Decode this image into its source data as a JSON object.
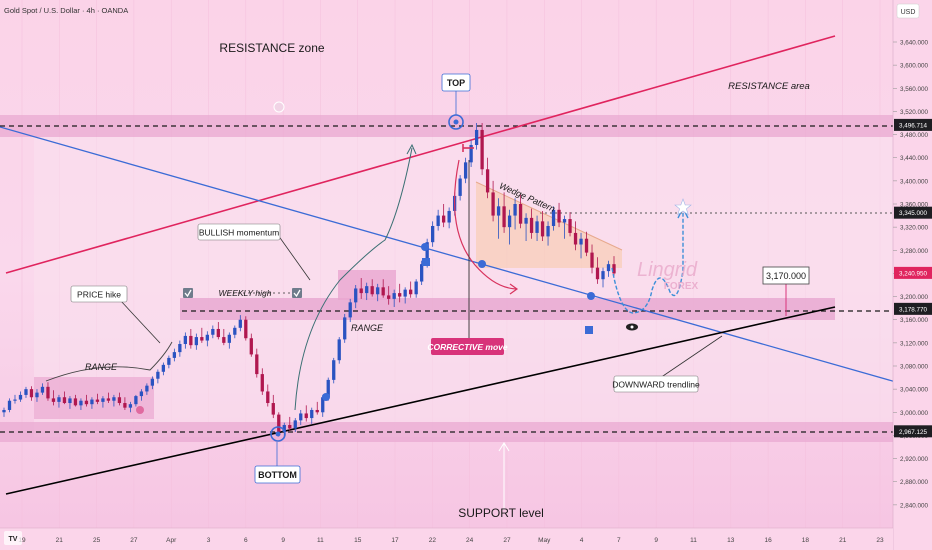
{
  "header": {
    "symbol_title": "Gold Spot / U.S. Dollar · 4h · OANDA",
    "currency": "USD"
  },
  "colors": {
    "background": "#fbd5ea",
    "bull_candle": "#2a53c1",
    "bear_candle": "#b0174f",
    "resistance_line": "#e0245e",
    "downtrend_line": "#3b6bd6",
    "support_line": "#000000",
    "pink_label": "#d8337a",
    "forecast_path": "#3d8fd8"
  },
  "chart_data": {
    "type": "candlestick",
    "title": "",
    "price_axis": {
      "unit": "USD",
      "range": [
        2800,
        3680
      ],
      "ticks": [
        2800,
        2840,
        2880,
        2920,
        2960,
        3000,
        3040,
        3080,
        3120,
        3160,
        3200,
        3240,
        3280,
        3320,
        3360,
        3400,
        3440,
        3480,
        3520,
        3560,
        3600,
        3640
      ]
    },
    "time_axis": {
      "labels": [
        "19",
        "21",
        "25",
        "27",
        "Apr",
        "3",
        "6",
        "9",
        "11",
        "15",
        "17",
        "22",
        "24",
        "27",
        "May",
        "4",
        "7",
        "9",
        "11",
        "13",
        "16",
        "18",
        "21",
        "23"
      ]
    },
    "price_badges": [
      {
        "label": "3,496.714",
        "value": 3496.714,
        "style": "dark"
      },
      {
        "label": "3,345.000",
        "value": 3345.0,
        "style": "dark"
      },
      {
        "label": "3,240.950",
        "value": 3240.95,
        "style": "current"
      },
      {
        "label": "3,178.770",
        "value": 3178.77,
        "style": "dark"
      },
      {
        "label": "2,967.125",
        "value": 2967.125,
        "style": "dark"
      }
    ],
    "target_box": {
      "label": "3,170.000",
      "value": 3170
    },
    "key_levels": [
      {
        "name": "resistance",
        "value": 3496.714
      },
      {
        "name": "target",
        "value": 3345.0
      },
      {
        "name": "weekly high",
        "value": 3178.77
      },
      {
        "name": "support",
        "value": 2967.125
      }
    ],
    "candles": [
      [
        3000,
        3008,
        2992,
        3004
      ],
      [
        3004,
        3024,
        3000,
        3020
      ],
      [
        3020,
        3030,
        3015,
        3022
      ],
      [
        3022,
        3036,
        3018,
        3030
      ],
      [
        3030,
        3044,
        3025,
        3040
      ],
      [
        3040,
        3045,
        3020,
        3026
      ],
      [
        3026,
        3040,
        3018,
        3034
      ],
      [
        3034,
        3050,
        3030,
        3044
      ],
      [
        3044,
        3052,
        3020,
        3024
      ],
      [
        3024,
        3038,
        3012,
        3018
      ],
      [
        3018,
        3030,
        3008,
        3026
      ],
      [
        3026,
        3036,
        3014,
        3016
      ],
      [
        3016,
        3028,
        3006,
        3024
      ],
      [
        3024,
        3030,
        3010,
        3012
      ],
      [
        3012,
        3024,
        3004,
        3020
      ],
      [
        3020,
        3030,
        3010,
        3014
      ],
      [
        3014,
        3026,
        3006,
        3022
      ],
      [
        3022,
        3032,
        3014,
        3018
      ],
      [
        3018,
        3028,
        3008,
        3024
      ],
      [
        3024,
        3034,
        3016,
        3020
      ],
      [
        3020,
        3030,
        3010,
        3026
      ],
      [
        3026,
        3034,
        3012,
        3016
      ],
      [
        3016,
        3026,
        3004,
        3008
      ],
      [
        3008,
        3018,
        3000,
        3014
      ],
      [
        3014,
        3030,
        3010,
        3028
      ],
      [
        3028,
        3040,
        3020,
        3036
      ],
      [
        3036,
        3050,
        3030,
        3046
      ],
      [
        3046,
        3062,
        3040,
        3058
      ],
      [
        3058,
        3074,
        3050,
        3070
      ],
      [
        3070,
        3086,
        3064,
        3082
      ],
      [
        3082,
        3098,
        3076,
        3094
      ],
      [
        3094,
        3110,
        3088,
        3104
      ],
      [
        3104,
        3124,
        3096,
        3118
      ],
      [
        3118,
        3138,
        3110,
        3132
      ],
      [
        3132,
        3144,
        3110,
        3116
      ],
      [
        3116,
        3136,
        3108,
        3130
      ],
      [
        3130,
        3146,
        3120,
        3124
      ],
      [
        3124,
        3140,
        3114,
        3134
      ],
      [
        3134,
        3150,
        3128,
        3144
      ],
      [
        3144,
        3156,
        3126,
        3130
      ],
      [
        3130,
        3144,
        3116,
        3120
      ],
      [
        3120,
        3138,
        3110,
        3134
      ],
      [
        3134,
        3150,
        3128,
        3146
      ],
      [
        3146,
        3168,
        3140,
        3160
      ],
      [
        3160,
        3166,
        3124,
        3128
      ],
      [
        3128,
        3136,
        3096,
        3100
      ],
      [
        3100,
        3110,
        3060,
        3066
      ],
      [
        3066,
        3076,
        3030,
        3036
      ],
      [
        3036,
        3048,
        3010,
        3016
      ],
      [
        3016,
        3030,
        2990,
        2996
      ],
      [
        2996,
        3000,
        2958,
        2966
      ],
      [
        2966,
        2982,
        2955,
        2978
      ],
      [
        2978,
        2992,
        2968,
        2972
      ],
      [
        2972,
        2990,
        2966,
        2986
      ],
      [
        2986,
        3004,
        2978,
        2998
      ],
      [
        2998,
        3012,
        2984,
        2990
      ],
      [
        2990,
        3008,
        2980,
        3004
      ],
      [
        3004,
        3018,
        2996,
        3000
      ],
      [
        3000,
        3030,
        2992,
        3026
      ],
      [
        3026,
        3060,
        3020,
        3056
      ],
      [
        3056,
        3094,
        3050,
        3090
      ],
      [
        3090,
        3130,
        3084,
        3126
      ],
      [
        3126,
        3170,
        3120,
        3164
      ],
      [
        3164,
        3196,
        3156,
        3190
      ],
      [
        3190,
        3220,
        3180,
        3214
      ],
      [
        3214,
        3232,
        3196,
        3206
      ],
      [
        3206,
        3224,
        3194,
        3218
      ],
      [
        3218,
        3230,
        3200,
        3204
      ],
      [
        3204,
        3222,
        3192,
        3216
      ],
      [
        3216,
        3230,
        3198,
        3202
      ],
      [
        3202,
        3218,
        3186,
        3196
      ],
      [
        3196,
        3212,
        3182,
        3206
      ],
      [
        3206,
        3222,
        3190,
        3200
      ],
      [
        3200,
        3216,
        3188,
        3212
      ],
      [
        3212,
        3226,
        3198,
        3204
      ],
      [
        3204,
        3230,
        3198,
        3226
      ],
      [
        3226,
        3262,
        3220,
        3256
      ],
      [
        3256,
        3300,
        3250,
        3294
      ],
      [
        3294,
        3330,
        3286,
        3322
      ],
      [
        3322,
        3350,
        3314,
        3340
      ],
      [
        3340,
        3360,
        3320,
        3328
      ],
      [
        3328,
        3354,
        3318,
        3348
      ],
      [
        3348,
        3380,
        3340,
        3374
      ],
      [
        3374,
        3410,
        3366,
        3404
      ],
      [
        3404,
        3440,
        3396,
        3432
      ],
      [
        3432,
        3470,
        3424,
        3462
      ],
      [
        3462,
        3500,
        3454,
        3488
      ],
      [
        3488,
        3500,
        3410,
        3420
      ],
      [
        3420,
        3440,
        3370,
        3380
      ],
      [
        3380,
        3400,
        3330,
        3340
      ],
      [
        3340,
        3370,
        3300,
        3356
      ],
      [
        3356,
        3380,
        3310,
        3320
      ],
      [
        3320,
        3350,
        3290,
        3340
      ],
      [
        3340,
        3370,
        3316,
        3360
      ],
      [
        3360,
        3376,
        3318,
        3326
      ],
      [
        3326,
        3344,
        3296,
        3336
      ],
      [
        3336,
        3352,
        3300,
        3310
      ],
      [
        3310,
        3340,
        3296,
        3330
      ],
      [
        3330,
        3348,
        3296,
        3304
      ],
      [
        3304,
        3330,
        3288,
        3322
      ],
      [
        3322,
        3356,
        3314,
        3350
      ],
      [
        3350,
        3362,
        3320,
        3328
      ],
      [
        3328,
        3340,
        3300,
        3334
      ],
      [
        3334,
        3346,
        3304,
        3310
      ],
      [
        3310,
        3330,
        3280,
        3290
      ],
      [
        3290,
        3310,
        3266,
        3300
      ],
      [
        3300,
        3312,
        3270,
        3276
      ],
      [
        3276,
        3290,
        3240,
        3250
      ],
      [
        3250,
        3268,
        3222,
        3230
      ],
      [
        3230,
        3250,
        3216,
        3244
      ],
      [
        3244,
        3262,
        3234,
        3256
      ],
      [
        3256,
        3270,
        3236,
        3240
      ]
    ],
    "annotations": [
      "RESISTANCE zone",
      "RESISTANCE area",
      "TOP",
      "Wedge Pattern",
      "BULLISH momentum",
      "WEEKLY high",
      "PRICE hike",
      "RANGE",
      "RANGE",
      "CORRECTIVE move",
      "DOWNWARD trendline",
      "BOTTOM",
      "SUPPORT level"
    ]
  },
  "labels": {
    "resistance_zone": "RESISTANCE zone",
    "resistance_area": "RESISTANCE area",
    "top": "TOP",
    "wedge": "Wedge Pattern",
    "bullish": "BULLISH momentum",
    "weekly_high": "WEEKLY high",
    "price_hike": "PRICE hike",
    "range_left": "RANGE",
    "range_mid": "RANGE",
    "corrective": "CORRECTIVE move",
    "downward": "DOWNWARD trendline",
    "bottom": "BOTTOM",
    "support": "SUPPORT level"
  },
  "watermark": {
    "brand": "Lingrid",
    "sub": "FOREX"
  },
  "footer": {
    "tv_logo": "TV"
  }
}
